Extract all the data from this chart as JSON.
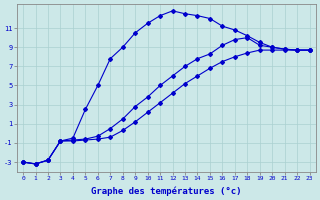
{
  "xlabel": "Graphe des températures (°c)",
  "ylabel": "",
  "background_color": "#cce8e8",
  "grid_color": "#aad0d0",
  "line_color": "#0000cc",
  "xlim": [
    -0.5,
    23.5
  ],
  "ylim": [
    -4.0,
    13.5
  ],
  "xticks": [
    0,
    1,
    2,
    3,
    4,
    5,
    6,
    7,
    8,
    9,
    10,
    11,
    12,
    13,
    14,
    15,
    16,
    17,
    18,
    19,
    20,
    21,
    22,
    23
  ],
  "yticks": [
    -3,
    -1,
    1,
    3,
    5,
    7,
    9,
    11
  ],
  "line1_x": [
    0,
    1,
    2,
    3,
    4,
    5,
    6,
    7,
    8,
    9,
    10,
    11,
    12,
    13,
    14,
    15,
    16,
    17,
    18,
    19,
    20,
    21,
    22,
    23
  ],
  "line1_y": [
    -3.0,
    -3.2,
    -2.8,
    -0.8,
    -0.5,
    2.5,
    5.0,
    7.8,
    9.0,
    10.5,
    11.5,
    12.3,
    12.8,
    12.5,
    12.3,
    12.0,
    11.2,
    10.8,
    10.2,
    9.5,
    9.0,
    8.8,
    8.7,
    8.7
  ],
  "line2_x": [
    0,
    1,
    2,
    3,
    4,
    5,
    6,
    7,
    8,
    9,
    10,
    11,
    12,
    13,
    14,
    15,
    16,
    17,
    18,
    19,
    20,
    21,
    22,
    23
  ],
  "line2_y": [
    -3.0,
    -3.2,
    -2.8,
    -0.8,
    -0.8,
    -0.7,
    -0.6,
    -0.4,
    0.3,
    1.2,
    2.2,
    3.2,
    4.2,
    5.2,
    6.0,
    6.8,
    7.5,
    8.0,
    8.4,
    8.7,
    8.7,
    8.7,
    8.7,
    8.7
  ],
  "line3_x": [
    0,
    1,
    2,
    3,
    4,
    5,
    6,
    7,
    8,
    9,
    10,
    11,
    12,
    13,
    14,
    15,
    16,
    17,
    18,
    19,
    20,
    21,
    22,
    23
  ],
  "line3_y": [
    -3.0,
    -3.2,
    -2.8,
    -0.8,
    -0.7,
    -0.6,
    -0.3,
    0.5,
    1.5,
    2.8,
    3.8,
    5.0,
    6.0,
    7.0,
    7.8,
    8.3,
    9.2,
    9.8,
    10.0,
    9.2,
    9.0,
    8.8,
    8.7,
    8.7
  ]
}
